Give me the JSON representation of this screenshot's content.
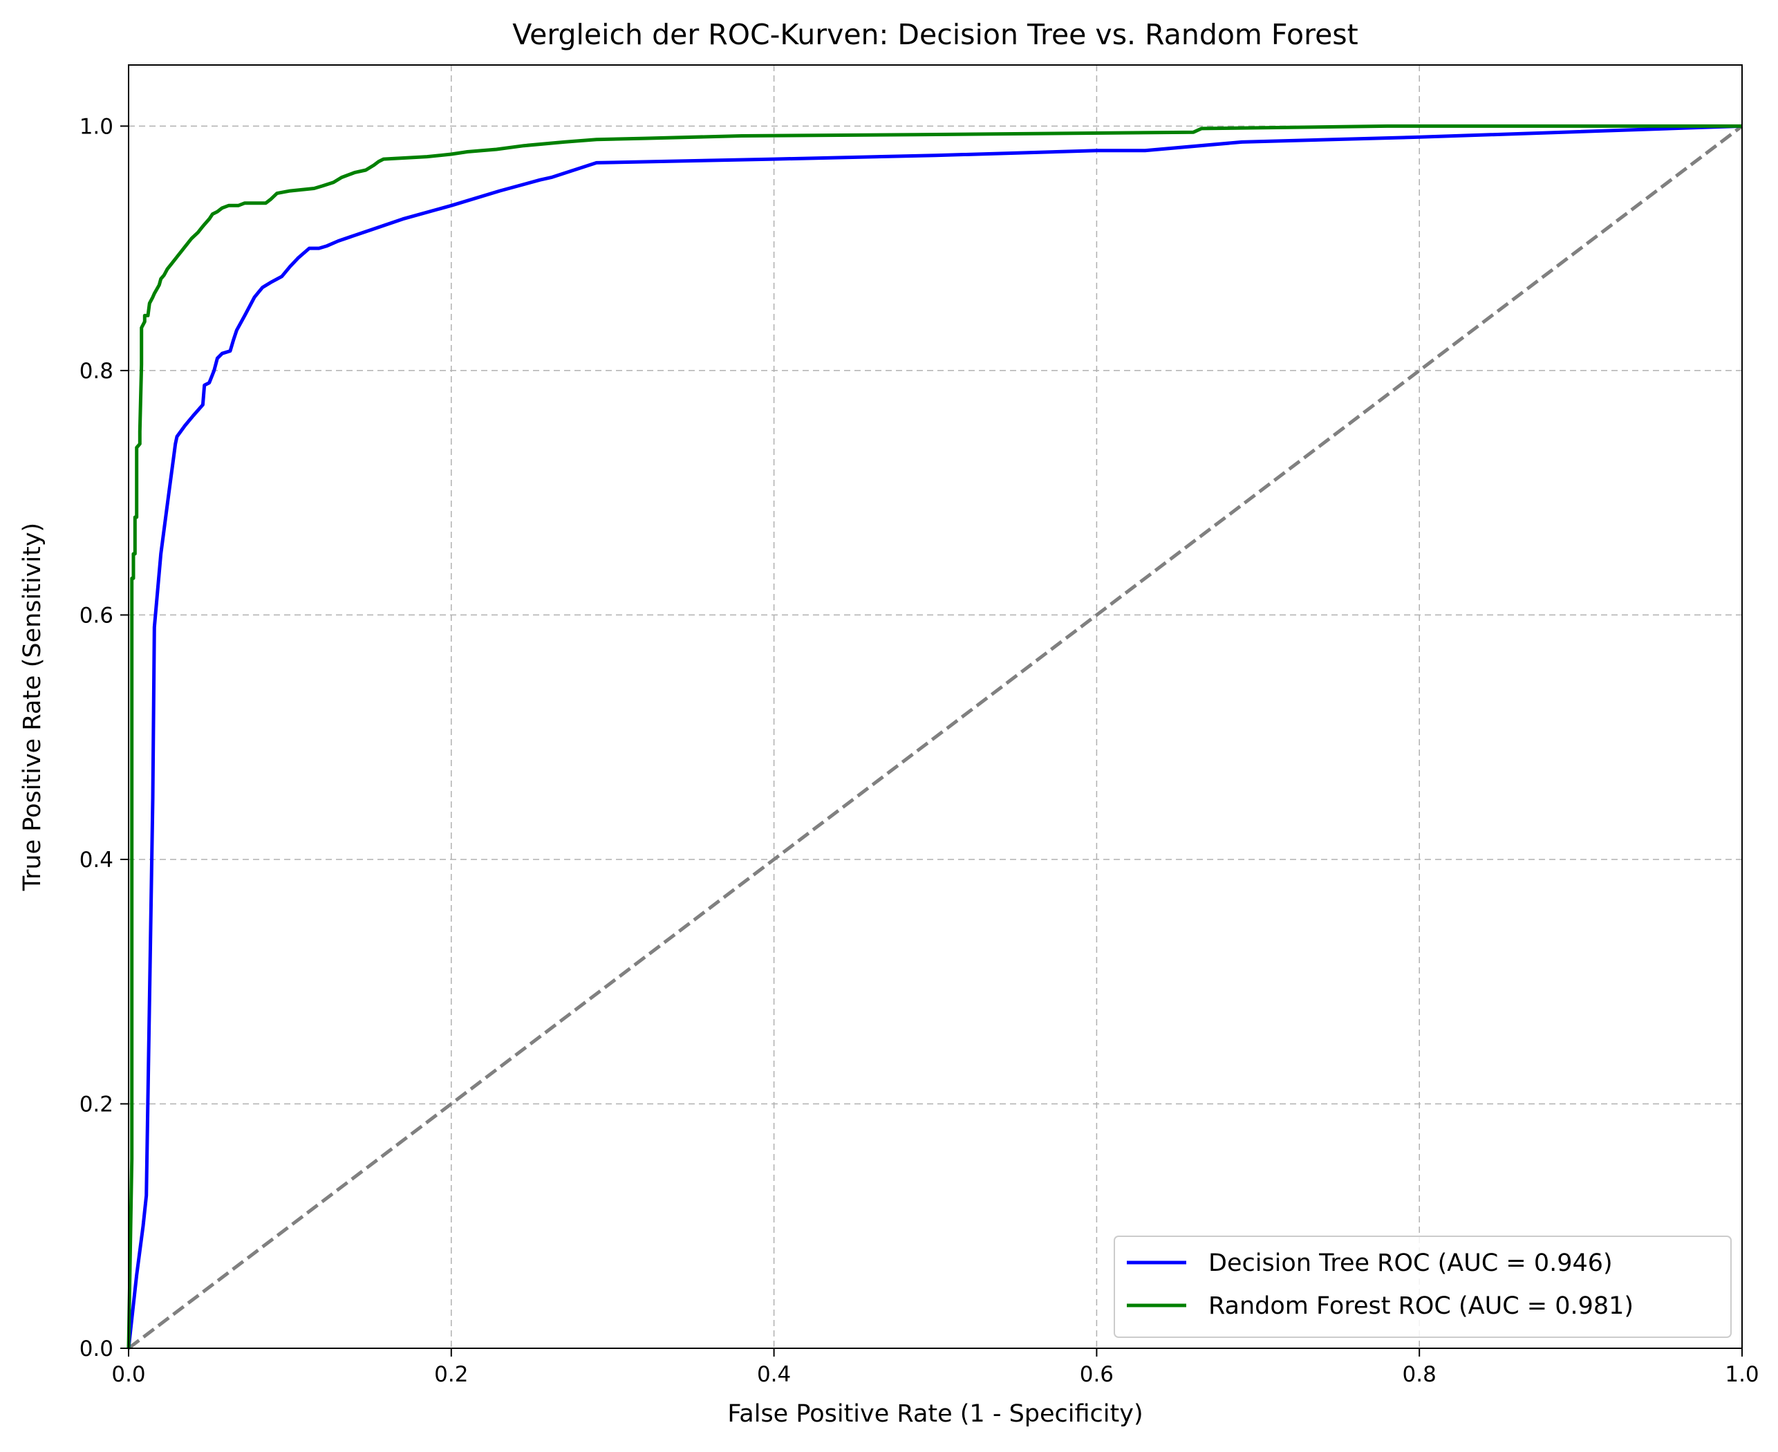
{
  "chart_data": {
    "type": "line",
    "title": "Vergleich der ROC-Kurven: Decision Tree vs. Random Forest",
    "xlabel": "False Positive Rate (1 - Specificity)",
    "ylabel": "True Positive Rate (Sensitivity)",
    "xlim": [
      0.0,
      1.0
    ],
    "ylim": [
      0.0,
      1.05
    ],
    "xticks": [
      "0.0",
      "0.2",
      "0.4",
      "0.6",
      "0.8",
      "1.0"
    ],
    "yticks": [
      "0.0",
      "0.2",
      "0.4",
      "0.6",
      "0.8",
      "1.0"
    ],
    "grid": true,
    "legend_position": "lower-right",
    "series": [
      {
        "name": "Decision Tree ROC (AUC = 0.946)",
        "color": "#0000ff",
        "style": "solid",
        "x": [
          0.0,
          0.005,
          0.009,
          0.011,
          0.015,
          0.016,
          0.02,
          0.025,
          0.028,
          0.029,
          0.03,
          0.035,
          0.04,
          0.046,
          0.047,
          0.05,
          0.053,
          0.055,
          0.058,
          0.063,
          0.065,
          0.067,
          0.072,
          0.078,
          0.083,
          0.088,
          0.095,
          0.1,
          0.105,
          0.112,
          0.118,
          0.123,
          0.13,
          0.15,
          0.17,
          0.2,
          0.23,
          0.255,
          0.262,
          0.29,
          0.4,
          0.5,
          0.6,
          0.63,
          0.69,
          0.8,
          1.0
        ],
        "y": [
          0.0,
          0.06,
          0.1,
          0.125,
          0.45,
          0.59,
          0.65,
          0.7,
          0.73,
          0.74,
          0.746,
          0.755,
          0.763,
          0.772,
          0.788,
          0.79,
          0.8,
          0.81,
          0.814,
          0.816,
          0.825,
          0.833,
          0.845,
          0.86,
          0.868,
          0.872,
          0.877,
          0.885,
          0.892,
          0.9,
          0.9,
          0.902,
          0.906,
          0.915,
          0.924,
          0.935,
          0.947,
          0.956,
          0.958,
          0.97,
          0.973,
          0.976,
          0.98,
          0.98,
          0.987,
          0.991,
          1.0
        ]
      },
      {
        "name": "Random Forest ROC (AUC = 0.981)",
        "color": "#008000",
        "style": "solid",
        "x": [
          0.0,
          0.002,
          0.002,
          0.003,
          0.003,
          0.004,
          0.004,
          0.005,
          0.005,
          0.007,
          0.007,
          0.008,
          0.008,
          0.01,
          0.01,
          0.012,
          0.013,
          0.015,
          0.016,
          0.019,
          0.02,
          0.022,
          0.024,
          0.027,
          0.03,
          0.033,
          0.036,
          0.039,
          0.043,
          0.046,
          0.05,
          0.052,
          0.055,
          0.058,
          0.062,
          0.068,
          0.072,
          0.085,
          0.088,
          0.092,
          0.1,
          0.115,
          0.12,
          0.127,
          0.132,
          0.14,
          0.147,
          0.152,
          0.155,
          0.158,
          0.185,
          0.2,
          0.21,
          0.228,
          0.245,
          0.27,
          0.29,
          0.32,
          0.38,
          0.488,
          0.66,
          0.665,
          0.78,
          1.0
        ],
        "y": [
          0.0,
          0.155,
          0.63,
          0.63,
          0.65,
          0.65,
          0.68,
          0.68,
          0.737,
          0.74,
          0.75,
          0.805,
          0.835,
          0.84,
          0.845,
          0.845,
          0.855,
          0.86,
          0.863,
          0.87,
          0.875,
          0.878,
          0.883,
          0.888,
          0.893,
          0.898,
          0.903,
          0.908,
          0.913,
          0.918,
          0.924,
          0.928,
          0.93,
          0.933,
          0.935,
          0.935,
          0.937,
          0.937,
          0.94,
          0.945,
          0.947,
          0.949,
          0.951,
          0.954,
          0.958,
          0.962,
          0.964,
          0.968,
          0.971,
          0.973,
          0.975,
          0.977,
          0.979,
          0.981,
          0.984,
          0.987,
          0.989,
          0.99,
          0.992,
          0.993,
          0.995,
          0.998,
          1.0,
          1.0
        ]
      },
      {
        "name": "",
        "color": "#808080",
        "style": "dashed",
        "x": [
          0.0,
          1.0
        ],
        "y": [
          0.0,
          1.0
        ]
      }
    ]
  }
}
